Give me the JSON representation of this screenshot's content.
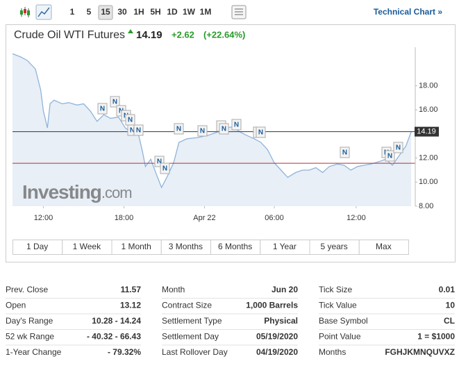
{
  "toolbar": {
    "timeframes": [
      "1",
      "5",
      "15",
      "30",
      "1H",
      "5H",
      "1D",
      "1W",
      "1M"
    ],
    "selected_timeframe": 2,
    "link": "Technical Chart »"
  },
  "header": {
    "title": "Crude Oil WTI Futures",
    "price": "14.19",
    "change": "+2.62",
    "change_percent": "(+22.64%)"
  },
  "chart_data": {
    "type": "area",
    "watermark": "Investing",
    "watermark_suffix": ".com",
    "news_marker_label": "N",
    "x": [
      0,
      0.6,
      1.1,
      1.7,
      2.1,
      2.3,
      2.6,
      2.8,
      3.1,
      3.7,
      4.2,
      4.8,
      5.3,
      5.8,
      6.3,
      6.8,
      7.3,
      7.9,
      8.4,
      8.9,
      9.4,
      9.7,
      9.9,
      10.3,
      10.7,
      11.1,
      11.5,
      12.0,
      12.4,
      13.0,
      13.8,
      14.6,
      15.4,
      15.9,
      16.4,
      16.9,
      17.4,
      18.0,
      18.5,
      19.0,
      19.5,
      20.0,
      20.5,
      21.1,
      21.6,
      22.1,
      22.6,
      23.1,
      23.6,
      24.2,
      24.7,
      25.2,
      25.7,
      26.2,
      26.7,
      27.3,
      27.8,
      28.3,
      28.8,
      29.3,
      29.7
    ],
    "series": [
      {
        "name": "Crude Oil WTI Futures",
        "color": "#8fb3d9",
        "fill": "#e8eff7",
        "values": [
          20.66,
          20.4,
          20.1,
          19.4,
          17.65,
          15.9,
          14.5,
          16.5,
          16.8,
          16.5,
          16.6,
          16.4,
          16.5,
          15.9,
          15.05,
          15.6,
          15.3,
          15.4,
          14.5,
          14.1,
          13.9,
          12.45,
          11.3,
          11.9,
          10.7,
          9.56,
          10.4,
          11.6,
          13.3,
          13.6,
          13.7,
          13.9,
          14.2,
          14.5,
          14.6,
          14.2,
          13.9,
          13.6,
          13.3,
          12.7,
          11.6,
          11.0,
          10.4,
          10.8,
          11.0,
          11.0,
          11.2,
          10.8,
          11.3,
          11.5,
          11.4,
          11.0,
          11.3,
          11.4,
          11.5,
          11.7,
          11.9,
          11.4,
          12.2,
          13.0,
          14.19
        ]
      }
    ],
    "last_price": 14.19,
    "last_price_color": "#333333",
    "prev_close": 11.57,
    "prev_close_color": "#b03030",
    "xlim": [
      0,
      30
    ],
    "xticks": [
      {
        "value": 2.3,
        "label": "12:00"
      },
      {
        "value": 8.3,
        "label": "18:00"
      },
      {
        "value": 14.3,
        "label": "Apr 22"
      },
      {
        "value": 19.5,
        "label": "06:00"
      },
      {
        "value": 25.6,
        "label": "12:00"
      }
    ],
    "ylim": [
      8,
      21.2
    ],
    "yticks": [
      {
        "value": 8,
        "label": "8.00"
      },
      {
        "value": 10,
        "label": "10.00"
      },
      {
        "value": 12,
        "label": "12.00"
      },
      {
        "value": 16,
        "label": "16.00"
      },
      {
        "value": 18,
        "label": "18.00"
      }
    ],
    "grid": false
  },
  "range_buttons": [
    "1 Day",
    "1 Week",
    "1 Month",
    "3 Months",
    "6 Months",
    "1 Year",
    "5 years",
    "Max"
  ],
  "stats": [
    [
      [
        "Prev. Close",
        "11.57"
      ],
      [
        "Open",
        "13.12"
      ],
      [
        "Day's Range",
        "10.28 - 14.24"
      ],
      [
        "52 wk Range",
        "- 40.32 - 66.43"
      ],
      [
        "1-Year Change",
        "- 79.32%"
      ]
    ],
    [
      [
        "Month",
        "Jun 20"
      ],
      [
        "Contract Size",
        "1,000 Barrels"
      ],
      [
        "Settlement Type",
        "Physical"
      ],
      [
        "Settlement Day",
        "05/19/2020"
      ],
      [
        "Last Rollover Day",
        "04/19/2020"
      ]
    ],
    [
      [
        "Tick Size",
        "0.01"
      ],
      [
        "Tick Value",
        "10"
      ],
      [
        "Base Symbol",
        "CL"
      ],
      [
        "Point Value",
        "1 = $1000"
      ],
      [
        "Months",
        "FGHJKMNQUVXZ"
      ]
    ]
  ]
}
